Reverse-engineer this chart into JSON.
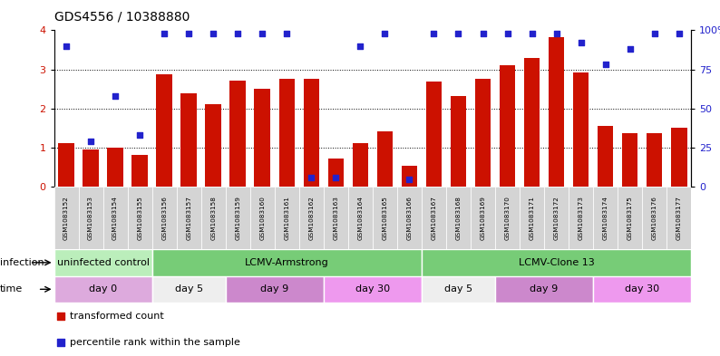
{
  "title": "GDS4556 / 10388880",
  "samples": [
    "GSM1083152",
    "GSM1083153",
    "GSM1083154",
    "GSM1083155",
    "GSM1083156",
    "GSM1083157",
    "GSM1083158",
    "GSM1083159",
    "GSM1083160",
    "GSM1083161",
    "GSM1083162",
    "GSM1083163",
    "GSM1083164",
    "GSM1083165",
    "GSM1083166",
    "GSM1083167",
    "GSM1083168",
    "GSM1083169",
    "GSM1083170",
    "GSM1083171",
    "GSM1083172",
    "GSM1083173",
    "GSM1083174",
    "GSM1083175",
    "GSM1083176",
    "GSM1083177"
  ],
  "red_bars": [
    1.12,
    0.95,
    1.0,
    0.82,
    2.88,
    2.4,
    2.12,
    2.72,
    2.5,
    2.76,
    2.76,
    0.72,
    1.12,
    1.42,
    0.55,
    2.68,
    2.32,
    2.76,
    3.1,
    3.3,
    3.82,
    2.92,
    1.55,
    1.38,
    1.38,
    1.5
  ],
  "blue_dots_pct": [
    90,
    29,
    58,
    33,
    98,
    98,
    98,
    98,
    98,
    98,
    6,
    6,
    90,
    98,
    5,
    98,
    98,
    98,
    98,
    98,
    98,
    92,
    78,
    88,
    98,
    98
  ],
  "red_color": "#cc1100",
  "blue_color": "#2222cc",
  "ylim_left": [
    0,
    4
  ],
  "ylim_right": [
    0,
    100
  ],
  "background_color": "#ffffff",
  "infection_groups": [
    {
      "label": "uninfected control",
      "start": 0,
      "end": 4,
      "color": "#bbeebb"
    },
    {
      "label": "LCMV-Armstrong",
      "start": 4,
      "end": 15,
      "color": "#77cc77"
    },
    {
      "label": "LCMV-Clone 13",
      "start": 15,
      "end": 26,
      "color": "#77cc77"
    }
  ],
  "time_groups": [
    {
      "label": "day 0",
      "start": 0,
      "end": 4,
      "color": "#ddaadd"
    },
    {
      "label": "day 5",
      "start": 4,
      "end": 7,
      "color": "#eeeeee"
    },
    {
      "label": "day 9",
      "start": 7,
      "end": 11,
      "color": "#cc88cc"
    },
    {
      "label": "day 30",
      "start": 11,
      "end": 15,
      "color": "#ee99ee"
    },
    {
      "label": "day 5",
      "start": 15,
      "end": 18,
      "color": "#eeeeee"
    },
    {
      "label": "day 9",
      "start": 18,
      "end": 22,
      "color": "#cc88cc"
    },
    {
      "label": "day 30",
      "start": 22,
      "end": 26,
      "color": "#ee99ee"
    }
  ]
}
